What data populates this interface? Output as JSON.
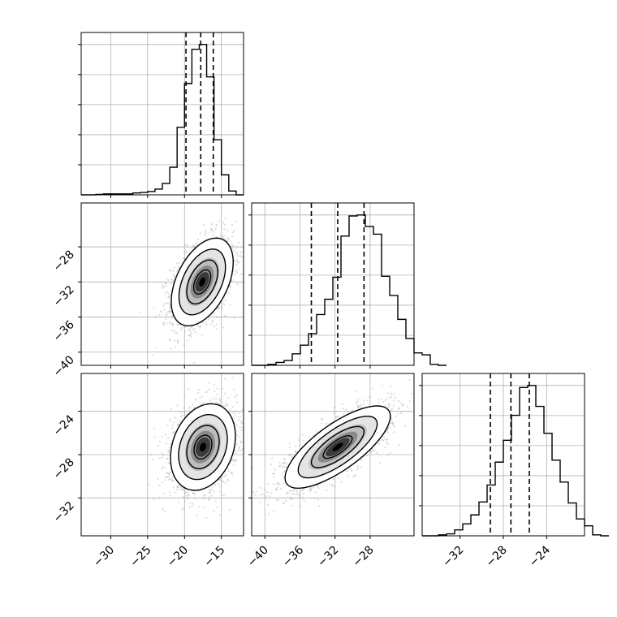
{
  "chart_data": {
    "type": "corner",
    "grid": true,
    "parameters": [
      {
        "range": [
          -34,
          -12
        ],
        "ticks": [
          -30,
          -25,
          -20,
          -15
        ],
        "tick_labels": [
          "−30",
          "−25",
          "−20",
          "−15"
        ],
        "quantiles": [
          -19.8,
          -17.8,
          -16.1
        ],
        "histogram": {
          "bin_start": -34,
          "bin_width": 1.0,
          "counts": [
            0,
            0,
            0.5,
            1,
            1,
            1,
            1,
            2,
            2.5,
            3.5,
            6,
            12,
            29,
            71,
            117,
            153,
            158,
            124,
            58,
            21,
            4,
            0
          ]
        }
      },
      {
        "range": [
          -41.5,
          -23
        ],
        "ticks": [
          -40,
          -36,
          -32,
          -28
        ],
        "tick_labels": [
          "−40",
          "−36",
          "−32",
          "−28"
        ],
        "quantiles": [
          -34.7,
          -31.7,
          -28.7
        ],
        "histogram": {
          "bin_start": -41.5,
          "bin_width": 0.925,
          "counts": [
            0,
            0,
            1,
            3,
            5,
            12,
            21,
            33,
            53,
            69,
            92,
            135,
            156,
            157,
            145,
            137,
            93,
            73,
            48,
            28,
            13,
            11,
            1,
            0
          ]
        }
      },
      {
        "range": [
          -35.5,
          -20.5
        ],
        "ticks": [
          -32,
          -28,
          -24
        ],
        "tick_labels": [
          "−32",
          "−28",
          "−24"
        ],
        "quantiles": [
          -29.2,
          -27.3,
          -25.6
        ],
        "histogram": {
          "bin_start": -35.5,
          "bin_width": 0.75,
          "counts": [
            0,
            0,
            1,
            2,
            6,
            12,
            21,
            34,
            51,
            74,
            96,
            121,
            149,
            151,
            130,
            103,
            76,
            54,
            33,
            17,
            10,
            1,
            0
          ]
        }
      }
    ],
    "pairs": [
      {
        "x": 0,
        "y": 1,
        "mean": [
          -17.6,
          -32.0
        ],
        "sd": [
          2.1,
          2.5
        ],
        "corr": 0.45
      },
      {
        "x": 0,
        "y": 2,
        "mean": [
          -17.5,
          -27.3
        ],
        "sd": [
          2.2,
          2.0
        ],
        "corr": 0.25
      },
      {
        "x": 1,
        "y": 2,
        "mean": [
          -31.7,
          -27.3
        ],
        "sd": [
          3.0,
          1.9
        ],
        "corr": 0.75
      }
    ]
  }
}
